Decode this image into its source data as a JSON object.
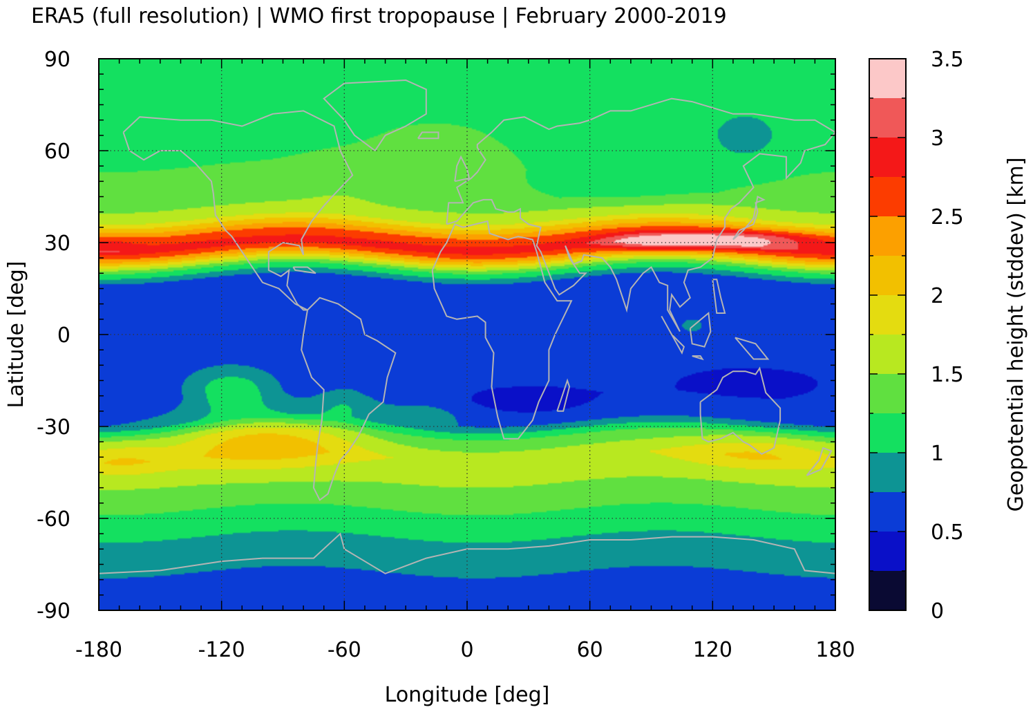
{
  "chart_data": {
    "type": "heatmap",
    "title": "ERA5 (full resolution) | WMO first tropopause | February 2000-2019",
    "xlabel": "Longitude [deg]",
    "ylabel": "Latitude [deg]",
    "colorbar_label": "Geopotential height (stddev) [km]",
    "xlim": [
      -180,
      180
    ],
    "ylim": [
      -90,
      90
    ],
    "x_ticks": [
      -180,
      -120,
      -60,
      0,
      60,
      120,
      180
    ],
    "y_ticks": [
      90,
      60,
      30,
      0,
      -30,
      -60,
      -90
    ],
    "x_tick_labels": [
      "-180",
      "-120",
      "-60",
      "0",
      "60",
      "120",
      "180"
    ],
    "y_tick_labels": [
      "90",
      "60",
      "30",
      "0",
      "-30",
      "-60",
      "-90"
    ],
    "grid": true,
    "colorbar": {
      "range": [
        0,
        3.5
      ],
      "tick_values": [
        0,
        0.5,
        1,
        1.5,
        2,
        2.5,
        3,
        3.5
      ],
      "tick_labels": [
        "0",
        "0.5",
        "1",
        "1.5",
        "2",
        "2.5",
        "3",
        "3.5"
      ],
      "levels": [
        0,
        0.25,
        0.5,
        0.75,
        1,
        1.25,
        1.5,
        1.75,
        2,
        2.25,
        2.5,
        2.75,
        3,
        3.25,
        3.5
      ],
      "colors": [
        "#0a0a33",
        "#0a10c8",
        "#0b3cd6",
        "#0d9494",
        "#14e060",
        "#60e040",
        "#b8e820",
        "#e4dc10",
        "#f2c000",
        "#fca000",
        "#fc3c00",
        "#f41818",
        "#f05858",
        "#fcc8c8"
      ]
    },
    "zonal_profile": {
      "lat": [
        -90,
        -80,
        -70,
        -62,
        -52,
        -40,
        -33,
        -28,
        -20,
        -10,
        0,
        10,
        18,
        22,
        26,
        29,
        33,
        38,
        45,
        55,
        65,
        80,
        90
      ],
      "values": [
        0.6,
        0.7,
        0.9,
        1.1,
        1.4,
        1.7,
        1.3,
        0.7,
        0.55,
        0.6,
        0.55,
        0.55,
        0.7,
        1.3,
        2.4,
        2.9,
        2.5,
        1.7,
        1.3,
        1.25,
        1.15,
        1.05,
        1.05
      ]
    },
    "anomalies": [
      {
        "lon": -100,
        "lat": -34,
        "dlon": 45,
        "dlat": 9,
        "delta": 0.65
      },
      {
        "lon": -170,
        "lat": -40,
        "dlon": 25,
        "dlat": 6,
        "delta": 0.35
      },
      {
        "lon": 145,
        "lat": -38,
        "dlon": 40,
        "dlat": 6,
        "delta": 0.4
      },
      {
        "lon": -115,
        "lat": -18,
        "dlon": 22,
        "dlat": 7,
        "delta": 0.6
      },
      {
        "lon": -60,
        "lat": -22,
        "dlon": 15,
        "dlat": 6,
        "delta": 0.3
      },
      {
        "lon": 130,
        "lat": 31,
        "dlon": 40,
        "dlat": 3,
        "delta": 0.7
      },
      {
        "lon": 90,
        "lat": 30,
        "dlon": 25,
        "dlat": 3,
        "delta": 0.5
      },
      {
        "lon": -175,
        "lat": 30,
        "dlon": 15,
        "dlat": 4,
        "delta": 0.2
      },
      {
        "lon": 135,
        "lat": 63,
        "dlon": 20,
        "dlat": 9,
        "delta": -0.25
      },
      {
        "lon": 80,
        "lat": 50,
        "dlon": 35,
        "dlat": 7,
        "delta": -0.25
      },
      {
        "lon": 110,
        "lat": 3,
        "dlon": 10,
        "dlat": 4,
        "delta": 0.25
      },
      {
        "lon": -15,
        "lat": 60,
        "dlon": 30,
        "dlat": 10,
        "delta": 0.3
      },
      {
        "lon": -60,
        "lat": 50,
        "dlon": 20,
        "dlat": 8,
        "delta": 0.2
      },
      {
        "lon": 30,
        "lat": -22,
        "dlon": 35,
        "dlat": 5,
        "delta": -0.2
      },
      {
        "lon": 140,
        "lat": -15,
        "dlon": 40,
        "dlat": 6,
        "delta": -0.15
      },
      {
        "lon": -20,
        "lat": -25,
        "dlon": 25,
        "dlat": 5,
        "delta": 0.2
      }
    ]
  }
}
